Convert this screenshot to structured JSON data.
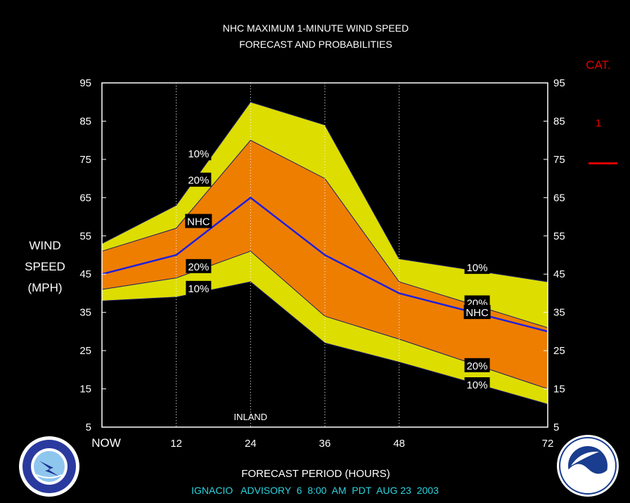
{
  "title": [
    "NHC MAXIMUM 1-MINUTE WIND SPEED",
    "FORECAST AND PROBABILITIES"
  ],
  "ylabel": [
    "WIND",
    "SPEED",
    "(MPH)"
  ],
  "xlabel": "FORECAST PERIOD (HOURS)",
  "advisory": "IGNACIO   ADVISORY  6  8:00  AM  PDT  AUG 23  2003",
  "cat": {
    "label": "CAT.",
    "value": "1"
  },
  "annotation": "INLAND",
  "colors": {
    "outer_band": "#dddd00",
    "inner_band": "#ee7e00",
    "nhc_line": "#1f1fe0",
    "category": "#e00000",
    "footer": "#2ad4e0"
  },
  "chart_data": {
    "type": "area",
    "x": [
      0,
      12,
      24,
      36,
      48,
      72
    ],
    "xticklabels": [
      "NOW",
      "12",
      "24",
      "36",
      "48",
      "72"
    ],
    "xlim": [
      0,
      72
    ],
    "ylim": [
      5,
      95
    ],
    "yticks": [
      5,
      15,
      25,
      35,
      45,
      55,
      65,
      75,
      85,
      95
    ],
    "grid_x": [
      12,
      24,
      36,
      48
    ],
    "series": [
      {
        "name": "10%",
        "upper": [
          53,
          63,
          90,
          84,
          49,
          43
        ],
        "lower": [
          38,
          39,
          43,
          27,
          22,
          11
        ]
      },
      {
        "name": "20%",
        "upper": [
          51,
          57,
          80,
          70,
          43,
          31
        ],
        "lower": [
          41,
          44,
          51,
          34,
          28,
          15
        ]
      },
      {
        "name": "NHC",
        "values": [
          45,
          50,
          65,
          50,
          40,
          30
        ]
      }
    ],
    "labels": [
      {
        "text": "10%",
        "x": 15.6,
        "y": 76.6
      },
      {
        "text": "20%",
        "x": 15.6,
        "y": 69.7
      },
      {
        "text": "NHC",
        "x": 15.6,
        "y": 58.9
      },
      {
        "text": "20%",
        "x": 15.6,
        "y": 47.1
      },
      {
        "text": "10%",
        "x": 15.6,
        "y": 41.4
      },
      {
        "text": "10%",
        "x": 60.6,
        "y": 46.9
      },
      {
        "text": "20%",
        "x": 60.6,
        "y": 37.6
      },
      {
        "text": "NHC",
        "x": 60.6,
        "y": 35.1
      },
      {
        "text": "20%",
        "x": 60.6,
        "y": 21.2
      },
      {
        "text": "10%",
        "x": 60.6,
        "y": 16.2
      }
    ]
  }
}
